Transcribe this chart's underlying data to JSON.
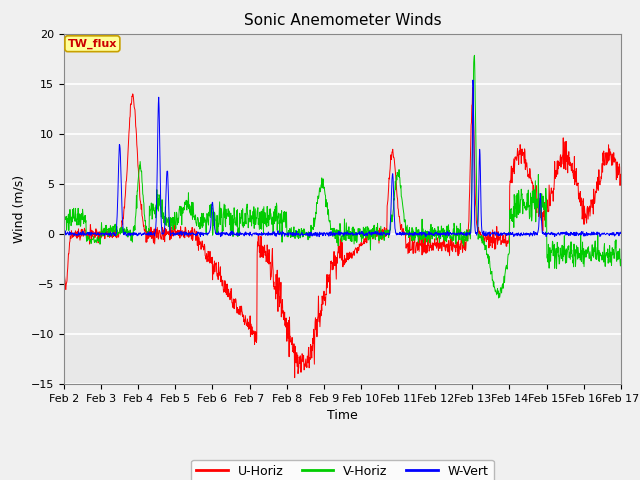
{
  "title": "Sonic Anemometer Winds",
  "xlabel": "Time",
  "ylabel": "Wind (m/s)",
  "xlim_days": [
    2,
    17
  ],
  "ylim": [
    -15,
    20
  ],
  "yticks": [
    -15,
    -10,
    -5,
    0,
    5,
    10,
    15,
    20
  ],
  "xtick_labels": [
    "Feb 2",
    "Feb 3",
    "Feb 4",
    "Feb 5",
    "Feb 6",
    "Feb 7",
    "Feb 8",
    "Feb 9",
    "Feb 10",
    "Feb 11",
    "Feb 12",
    "Feb 13",
    "Feb 14",
    "Feb 15",
    "Feb 16",
    "Feb 17"
  ],
  "label_box_text": "TW_flux",
  "label_box_color": "#ffff99",
  "label_box_edge": "#c8a000",
  "legend_entries": [
    "U-Horiz",
    "V-Horiz",
    "W-Vert"
  ],
  "line_colors": [
    "#ff0000",
    "#00cc00",
    "#0000ff"
  ],
  "fig_bg_color": "#f0f0f0",
  "plot_bg_color": "#e8e8e8",
  "grid_color": "#ffffff",
  "title_fontsize": 11,
  "axis_label_fontsize": 9,
  "tick_fontsize": 8
}
